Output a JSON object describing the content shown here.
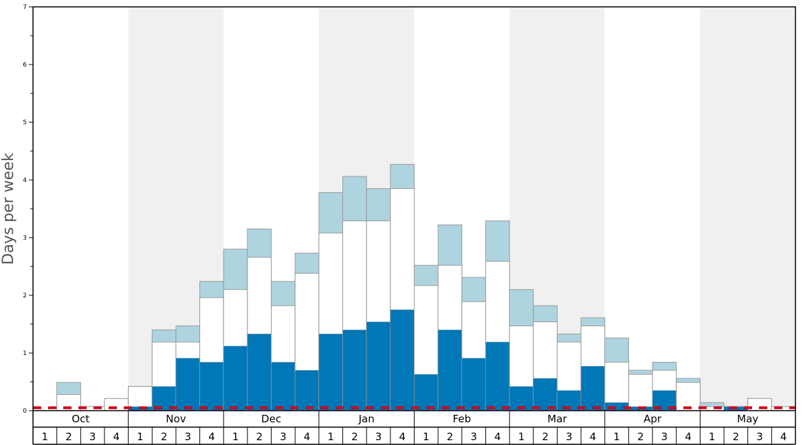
{
  "chart_data": {
    "type": "bar",
    "ylabel": "Days per week",
    "ylim": [
      0,
      7
    ],
    "yticks": [
      "0",
      "1",
      "2",
      "3",
      "4",
      "5",
      "6",
      "7"
    ],
    "months": [
      "Oct",
      "Nov",
      "Dec",
      "Jan",
      "Feb",
      "Mar",
      "Apr",
      "May"
    ],
    "week_labels": [
      "1",
      "2",
      "3",
      "4"
    ],
    "colors": {
      "dark": "#0077b6",
      "light": "#ffffff",
      "top": "#aed4e0",
      "line": "#d0021b",
      "shade": "#f0f0f0"
    },
    "series": [
      {
        "values": [
          0,
          0,
          0,
          0,
          0.07,
          0.42,
          0.91,
          0.84,
          1.12,
          1.33,
          0.84,
          0.7,
          1.33,
          1.4,
          1.54,
          1.75,
          0.63,
          1.4,
          0.91,
          1.19,
          0.42,
          0.56,
          0.35,
          0.77,
          0.14,
          0.07,
          0.35,
          0,
          0,
          0.07,
          0,
          0
        ]
      },
      {
        "values": [
          0,
          0.28,
          0.07,
          0.21,
          0.42,
          1.19,
          1.19,
          1.96,
          2.1,
          2.66,
          1.82,
          2.38,
          3.08,
          3.29,
          3.29,
          3.85,
          2.17,
          2.52,
          1.89,
          2.59,
          1.47,
          1.54,
          1.19,
          1.47,
          0.84,
          0.63,
          0.7,
          0.49,
          0.07,
          0.07,
          0.21,
          0.07
        ]
      },
      {
        "values": [
          0,
          0.49,
          0.07,
          0.21,
          0.42,
          1.4,
          1.47,
          2.24,
          2.8,
          3.15,
          2.24,
          2.73,
          3.78,
          4.06,
          3.85,
          4.27,
          2.52,
          3.22,
          2.31,
          3.29,
          2.1,
          1.82,
          1.33,
          1.61,
          1.26,
          0.7,
          0.84,
          0.56,
          0.14,
          0.07,
          0.21,
          0.07
        ]
      },
      {
        "values": [
          0.05,
          0.05,
          0.05,
          0.05,
          0.05,
          0.05,
          0.05,
          0.05,
          0.05,
          0.05,
          0.05,
          0.05,
          0.05,
          0.05,
          0.05,
          0.05,
          0.05,
          0.05,
          0.05,
          0.05,
          0.05,
          0.05,
          0.05,
          0.05,
          0.05,
          0.05,
          0.05,
          0.05,
          0.05,
          0.05,
          0.05,
          0.05
        ]
      }
    ],
    "grid": false
  }
}
